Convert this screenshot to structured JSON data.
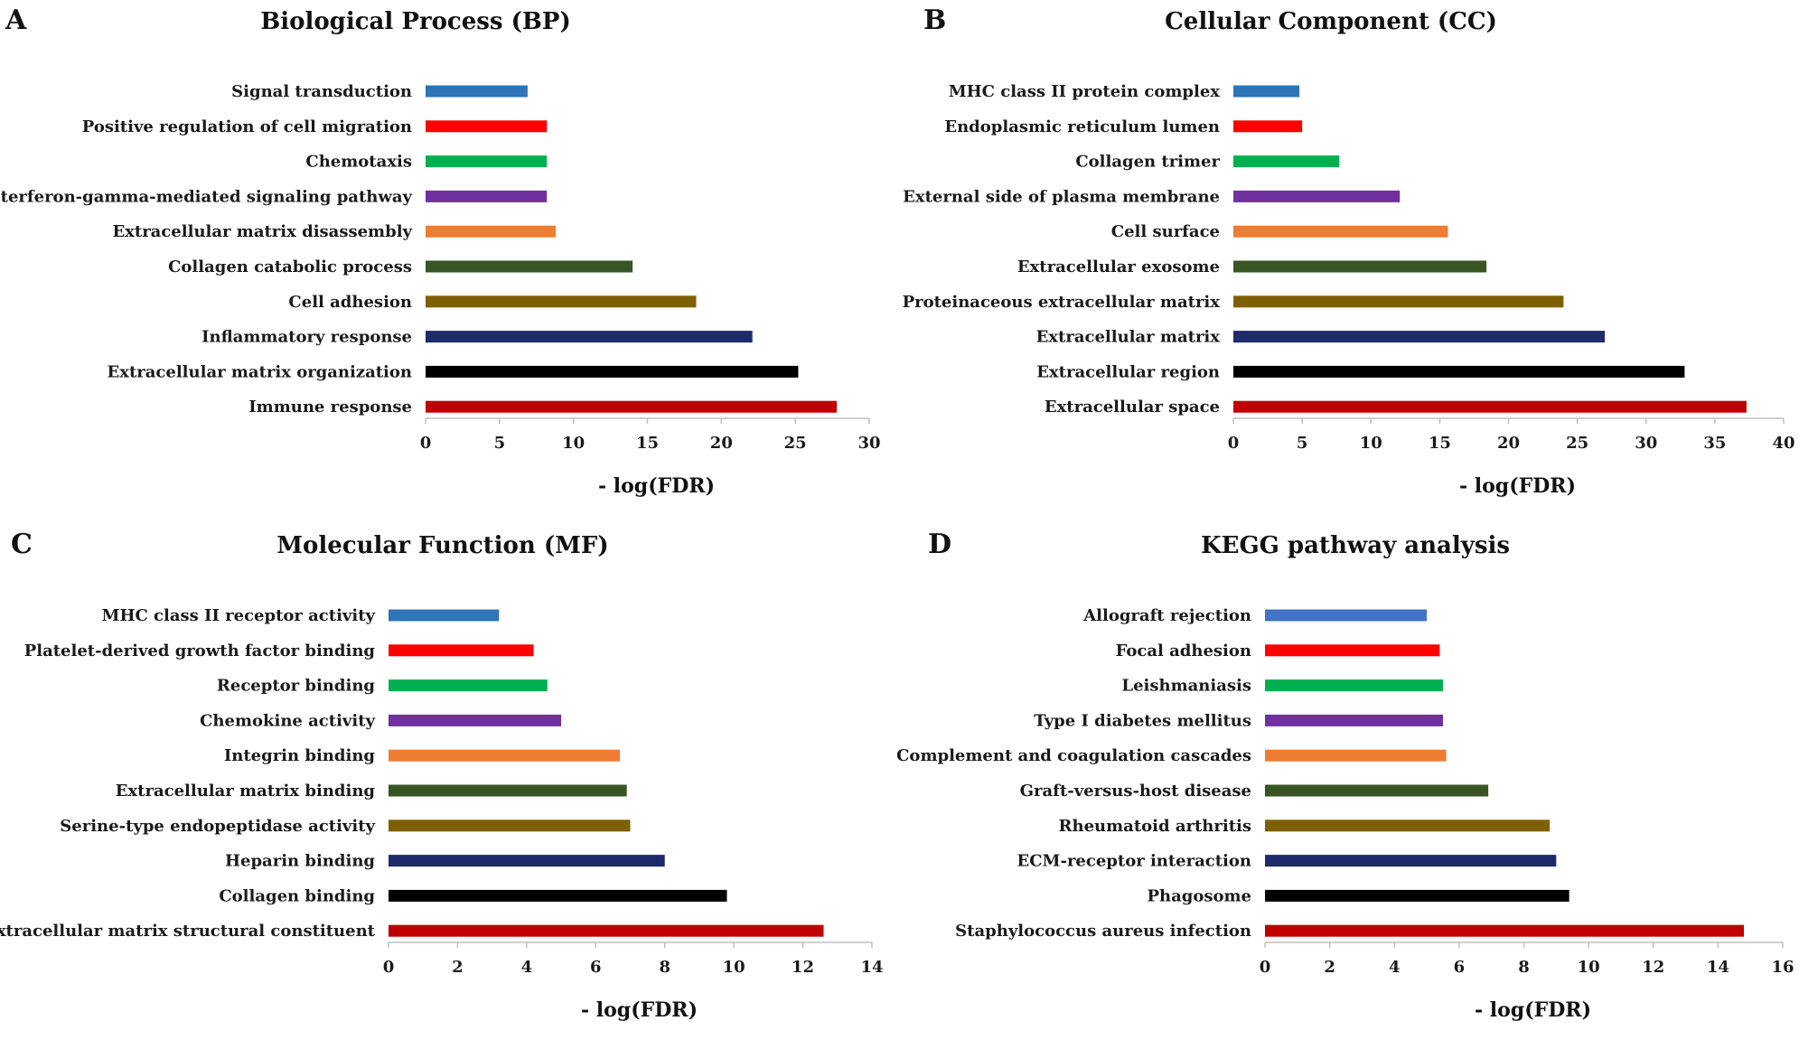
{
  "chart_data": [
    {
      "panel": "A",
      "type": "bar",
      "orientation": "horizontal",
      "title": "Biological Process (BP)",
      "xlabel": "- log(FDR)",
      "ylabel": "",
      "xlim": [
        0,
        30
      ],
      "xticks": [
        "0",
        "5",
        "10",
        "15",
        "20",
        "25",
        "30"
      ],
      "categories": [
        "Signal transduction",
        "Positive regulation of cell migration",
        "Chemotaxis",
        "Interferon-gamma-mediated signaling pathway",
        "Extracellular matrix disassembly",
        "Collagen catabolic process",
        "Cell adhesion",
        "Inflammatory response",
        "Extracellular matrix organization",
        "Immune response"
      ],
      "values": [
        6.9,
        8.2,
        8.2,
        8.2,
        8.8,
        14.0,
        18.3,
        22.1,
        25.2,
        27.8
      ],
      "colors": [
        "#2e75b6",
        "#ff0000",
        "#00b050",
        "#7030a0",
        "#ed7d31",
        "#375623",
        "#7f6000",
        "#1f2a6b",
        "#000000",
        "#c00000"
      ]
    },
    {
      "panel": "B",
      "type": "bar",
      "orientation": "horizontal",
      "title": "Cellular Component (CC)",
      "xlabel": "- log(FDR)",
      "ylabel": "",
      "xlim": [
        0,
        40
      ],
      "xticks": [
        "0",
        "5",
        "10",
        "15",
        "20",
        "25",
        "30",
        "35",
        "40"
      ],
      "categories": [
        "MHC class II protein complex",
        "Endoplasmic reticulum lumen",
        "Collagen trimer",
        "External side of plasma membrane",
        "Cell surface",
        "Extracellular exosome",
        "Proteinaceous extracellular matrix",
        "Extracellular matrix",
        "Extracellular region",
        "Extracellular space"
      ],
      "values": [
        4.8,
        5.0,
        7.7,
        12.1,
        15.6,
        18.4,
        24.0,
        27.0,
        32.8,
        37.3
      ],
      "colors": [
        "#2e75b6",
        "#ff0000",
        "#00b050",
        "#7030a0",
        "#ed7d31",
        "#375623",
        "#7f6000",
        "#1f2a6b",
        "#000000",
        "#c00000"
      ]
    },
    {
      "panel": "C",
      "type": "bar",
      "orientation": "horizontal",
      "title": "Molecular Function (MF)",
      "xlabel": "- log(FDR)",
      "ylabel": "",
      "xlim": [
        0,
        14
      ],
      "xticks": [
        "0",
        "2",
        "4",
        "6",
        "8",
        "10",
        "12",
        "14"
      ],
      "categories": [
        "MHC class II receptor activity",
        "Platelet-derived growth factor binding",
        "Receptor binding",
        "Chemokine activity",
        "Integrin binding",
        "Extracellular matrix binding",
        "Serine-type endopeptidase activity",
        "Heparin binding",
        "Collagen binding",
        "Extracellular matrix structural constituent"
      ],
      "values": [
        3.2,
        4.2,
        4.6,
        5.0,
        6.7,
        6.9,
        7.0,
        8.0,
        9.8,
        12.6
      ],
      "colors": [
        "#2e75b6",
        "#ff0000",
        "#00b050",
        "#7030a0",
        "#ed7d31",
        "#375623",
        "#7f6000",
        "#1f2a6b",
        "#000000",
        "#c00000"
      ]
    },
    {
      "panel": "D",
      "type": "bar",
      "orientation": "horizontal",
      "title": "KEGG pathway analysis",
      "xlabel": "- log(FDR)",
      "ylabel": "",
      "xlim": [
        0,
        16
      ],
      "xticks": [
        "0",
        "2",
        "4",
        "6",
        "8",
        "10",
        "12",
        "14",
        "16"
      ],
      "categories": [
        "Allograft rejection",
        "Focal adhesion",
        "Leishmaniasis",
        "Type I diabetes mellitus",
        "Complement and coagulation cascades",
        "Graft-versus-host disease",
        "Rheumatoid arthritis",
        "ECM-receptor interaction",
        "Phagosome",
        "Staphylococcus aureus infection"
      ],
      "values": [
        5.0,
        5.4,
        5.5,
        5.5,
        5.6,
        6.9,
        8.8,
        9.0,
        9.4,
        14.8
      ],
      "colors": [
        "#4472c4",
        "#ff0000",
        "#00b050",
        "#7030a0",
        "#ed7d31",
        "#375623",
        "#7f6000",
        "#1f2a6b",
        "#000000",
        "#c00000"
      ]
    }
  ]
}
